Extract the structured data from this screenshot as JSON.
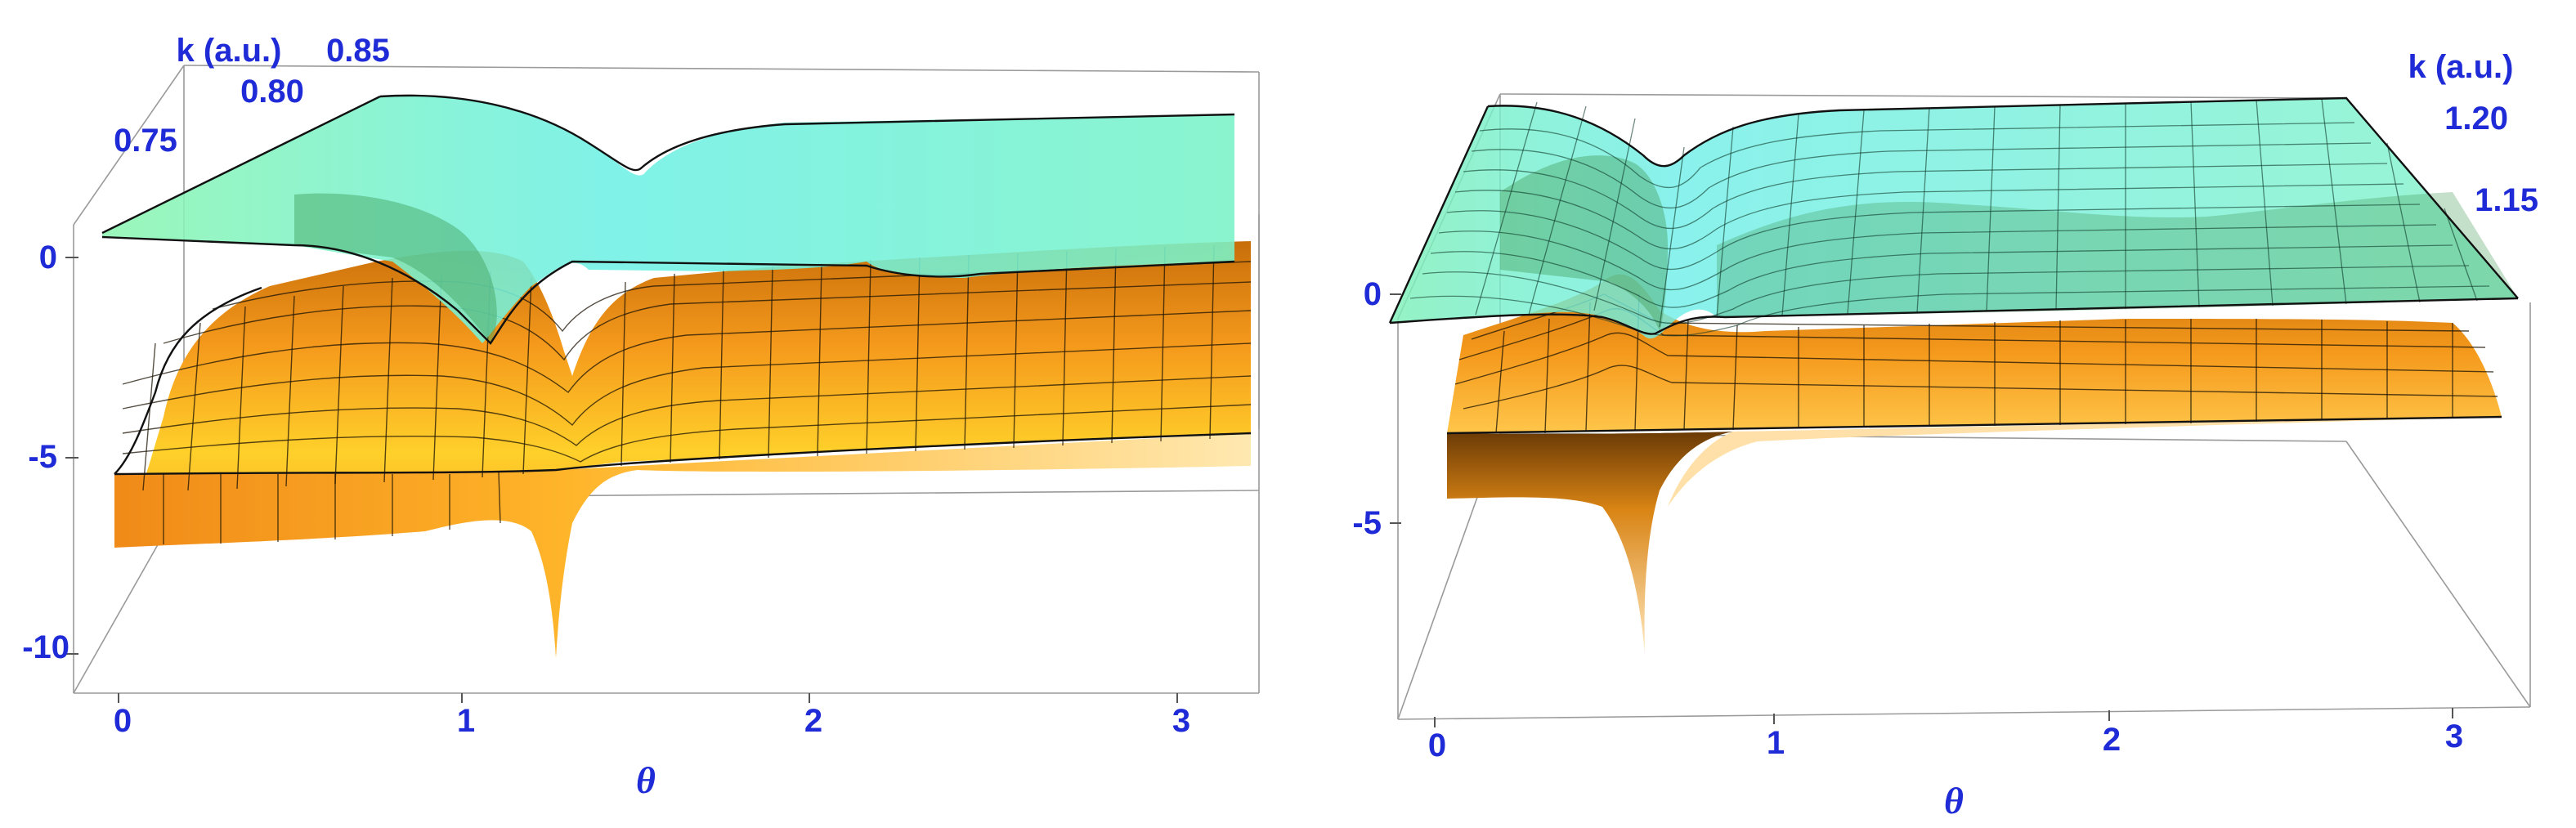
{
  "chart_data": [
    {
      "type": "surface3d",
      "title": "",
      "xlabel": "θ",
      "ylabel": "k (a.u.)",
      "zlabel": "",
      "x_ticks": [
        "0",
        "1",
        "2",
        "3"
      ],
      "y_ticks": [
        "0.75",
        "0.80",
        "0.85"
      ],
      "z_ticks": [
        "0",
        "-5",
        "-10"
      ],
      "xlim": [
        0,
        3.14
      ],
      "ylim": [
        0.72,
        0.88
      ],
      "zlim": [
        -10.5,
        1
      ],
      "grid": false,
      "surfaces": [
        {
          "color": "#f5a623",
          "mesh": true,
          "dip_theta": 1.25,
          "dip_depth": -10.2
        },
        {
          "color": "#7ef0c8",
          "mesh": false,
          "dip_theta": 1.1,
          "dip_depth": -1.5
        }
      ]
    },
    {
      "type": "surface3d",
      "title": "",
      "xlabel": "θ",
      "ylabel": "k (a.u.)",
      "zlabel": "",
      "x_ticks": [
        "0",
        "1",
        "2",
        "3"
      ],
      "y_ticks": [
        "1.15",
        "1.20"
      ],
      "z_ticks": [
        "0",
        "-5"
      ],
      "xlim": [
        0,
        3.14
      ],
      "ylim": [
        1.12,
        1.22
      ],
      "zlim": [
        -9,
        1
      ],
      "grid": false,
      "surfaces": [
        {
          "color": "#f5a623",
          "mesh": true,
          "dip_theta": 0.6,
          "dip_depth": -8.8
        },
        {
          "color": "#7ef0c8",
          "mesh": true,
          "dip_theta": 0.65,
          "dip_depth": -0.8
        }
      ]
    }
  ]
}
